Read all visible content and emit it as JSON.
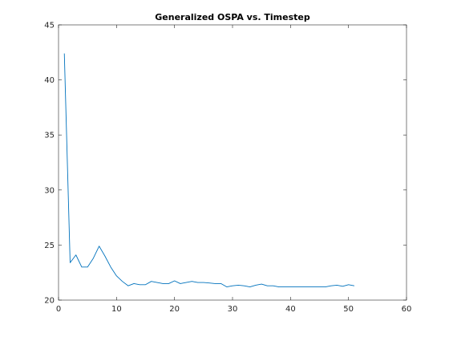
{
  "chart_data": {
    "type": "line",
    "title": "Generalized OSPA vs. Timestep",
    "xlabel": "",
    "ylabel": "",
    "xlim": [
      0,
      60
    ],
    "ylim": [
      20,
      45
    ],
    "xticks": [
      0,
      10,
      20,
      30,
      40,
      50,
      60
    ],
    "yticks": [
      20,
      25,
      30,
      35,
      40,
      45
    ],
    "grid": false,
    "box": true,
    "series": [
      {
        "color": "#0072bd",
        "x": [
          1,
          2,
          3,
          4,
          5,
          6,
          7,
          8,
          9,
          10,
          11,
          12,
          13,
          14,
          15,
          16,
          17,
          18,
          19,
          20,
          21,
          22,
          23,
          24,
          25,
          26,
          27,
          28,
          29,
          30,
          31,
          32,
          33,
          34,
          35,
          36,
          37,
          38,
          39,
          40,
          41,
          42,
          43,
          44,
          45,
          46,
          47,
          48,
          49,
          50,
          51
        ],
        "y": [
          42.4,
          23.4,
          24.1,
          23.0,
          23.0,
          23.8,
          24.9,
          24.0,
          23.0,
          22.2,
          21.7,
          21.3,
          21.5,
          21.4,
          21.4,
          21.7,
          21.6,
          21.5,
          21.5,
          21.75,
          21.5,
          21.6,
          21.7,
          21.6,
          21.6,
          21.55,
          21.5,
          21.5,
          21.2,
          21.3,
          21.35,
          21.3,
          21.2,
          21.35,
          21.45,
          21.3,
          21.3,
          21.2,
          21.2,
          21.2,
          21.2,
          21.2,
          21.2,
          21.2,
          21.2,
          21.2,
          21.3,
          21.35,
          21.25,
          21.4,
          21.3
        ]
      }
    ]
  }
}
